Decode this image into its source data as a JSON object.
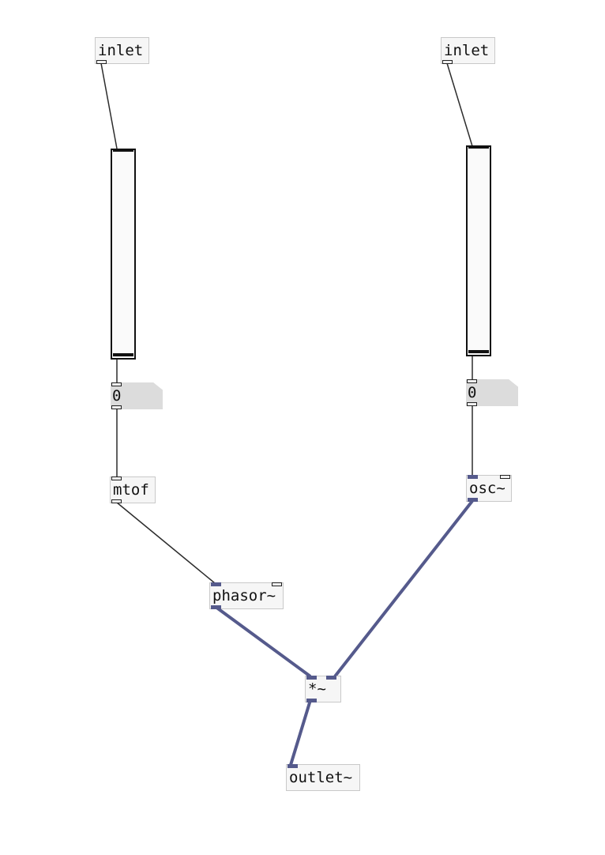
{
  "patch": {
    "inlet_left": {
      "label": "inlet"
    },
    "inlet_right": {
      "label": "inlet"
    },
    "slider_left": {
      "value": 0
    },
    "slider_right": {
      "value": 0
    },
    "number_left": {
      "value": "0"
    },
    "number_right": {
      "value": "0"
    },
    "mtof": {
      "label": "mtof"
    },
    "osc": {
      "label": "osc~"
    },
    "phasor": {
      "label": "phasor~"
    },
    "multiply": {
      "label": "*~"
    },
    "outlet": {
      "label": "outlet~"
    }
  },
  "colors": {
    "control_wire": "#2c2c2c",
    "signal_wire": "#555a8c",
    "box_fill": "#f6f6f6",
    "box_border": "#c9c9c9",
    "number_fill": "#dcdcdc"
  }
}
